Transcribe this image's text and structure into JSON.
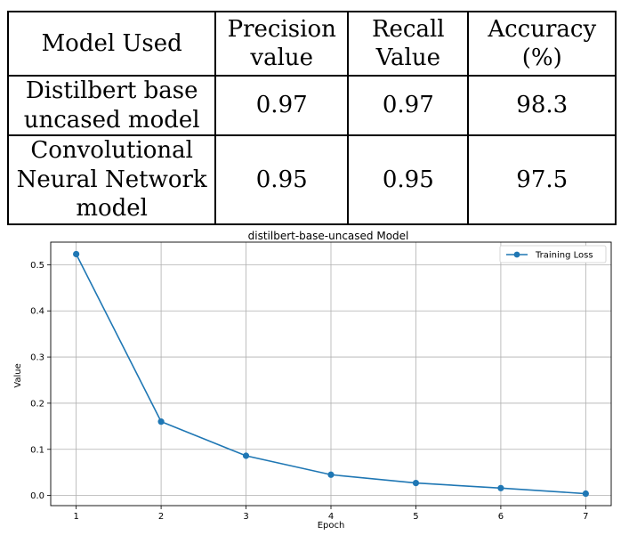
{
  "table": {
    "headers": [
      "Model Used",
      "Precision value",
      "Recall Value",
      "Accuracy (%)"
    ],
    "rows": [
      [
        "Distilbert base uncased model",
        "0.97",
        "0.97",
        "98.3"
      ],
      [
        "Convolutional Neural Network model",
        "0.95",
        "0.95",
        "97.5"
      ]
    ]
  },
  "chart_data": {
    "type": "line",
    "title": "distilbert-base-uncased Model",
    "xlabel": "Epoch",
    "ylabel": "Value",
    "x": [
      1,
      2,
      3,
      4,
      5,
      6,
      7
    ],
    "series": [
      {
        "name": "Training Loss",
        "values": [
          0.523,
          0.16,
          0.086,
          0.045,
          0.027,
          0.016,
          0.004
        ],
        "color": "#1f77b4"
      }
    ],
    "xticks": [
      "1",
      "2",
      "3",
      "4",
      "5",
      "6",
      "7"
    ],
    "yticks": [
      "0.0",
      "0.1",
      "0.2",
      "0.3",
      "0.4",
      "0.5"
    ],
    "xlim": [
      0.7,
      7.3
    ],
    "ylim": [
      -0.022,
      0.549
    ],
    "grid": true,
    "legend": "top-right"
  }
}
